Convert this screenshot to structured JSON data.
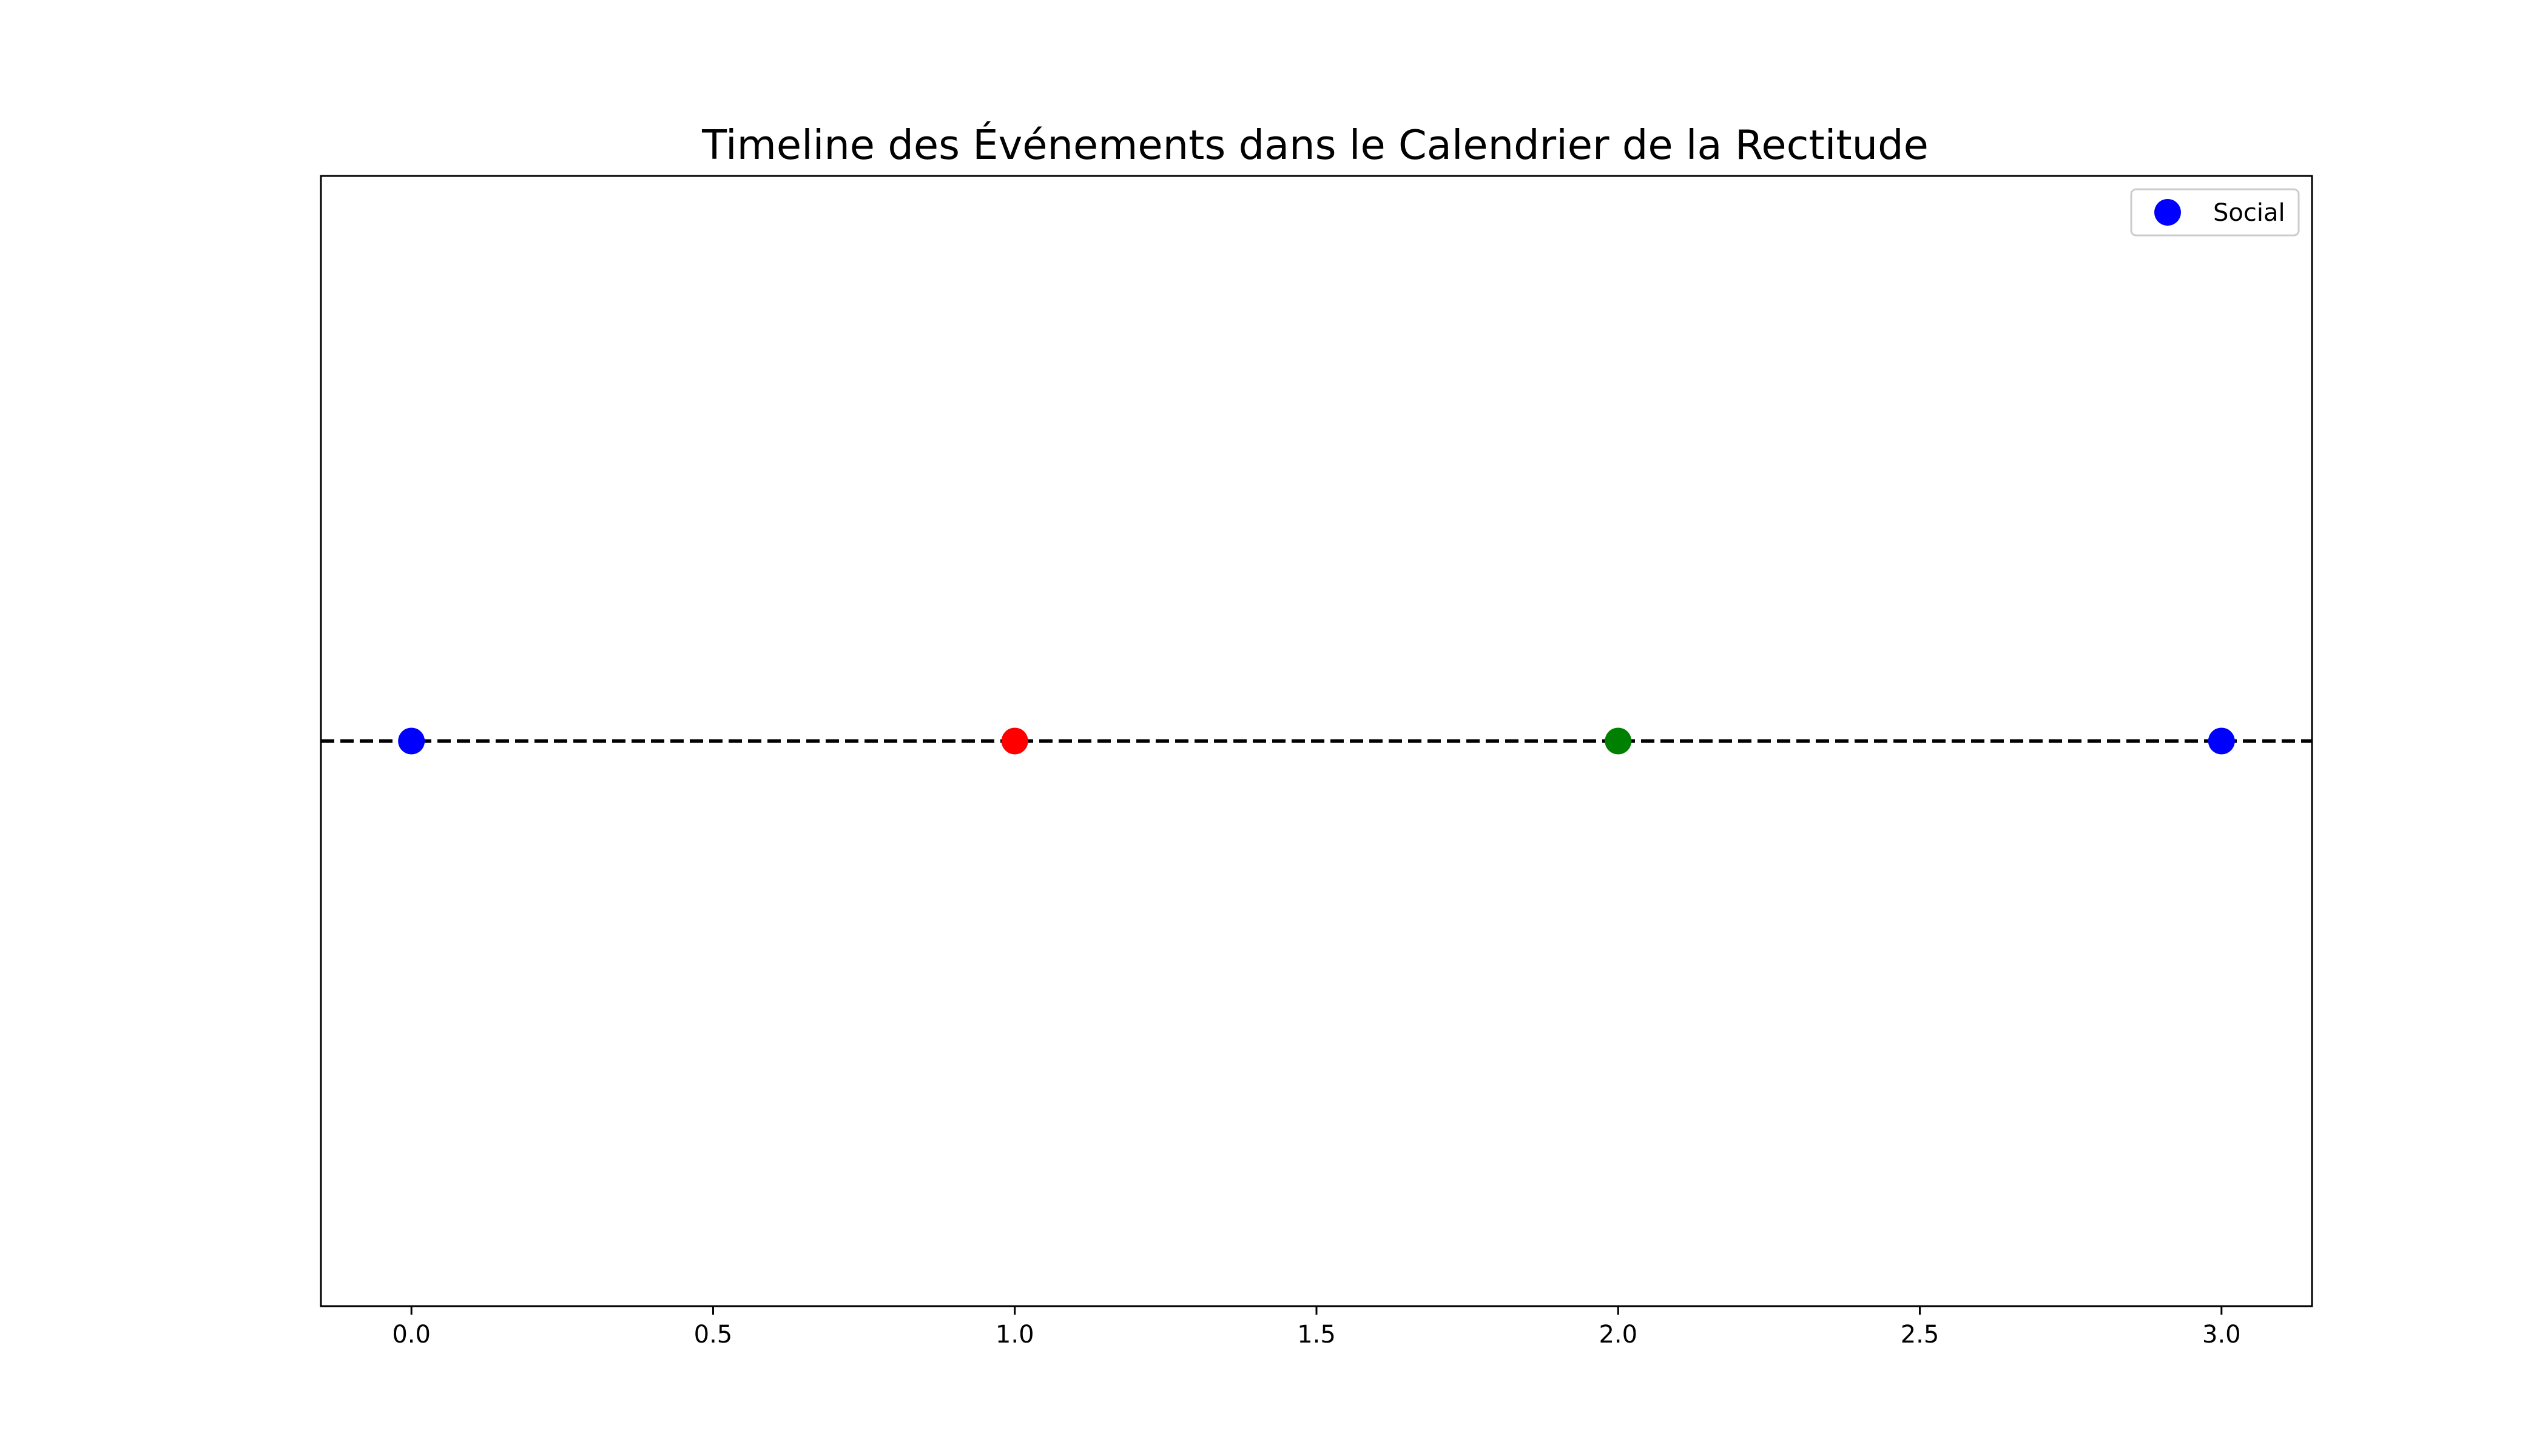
{
  "chart_data": {
    "type": "scatter",
    "title": "Timeline des Événements dans le Calendrier de la Rectitude",
    "xlabel": "",
    "ylabel": "",
    "xlim": [
      -0.15,
      3.15
    ],
    "ylim": [
      -1,
      1
    ],
    "x_ticks": [
      0.0,
      0.5,
      1.0,
      1.5,
      2.0,
      2.5,
      3.0
    ],
    "x_tick_labels": [
      "0.0",
      "0.5",
      "1.0",
      "1.5",
      "2.0",
      "2.5",
      "3.0"
    ],
    "y_ticks_visible": false,
    "grid": false,
    "reference_line": {
      "y": 0,
      "style": "dashed",
      "color": "#000000"
    },
    "points": [
      {
        "x": 0,
        "y": 0,
        "color": "#0000ff"
      },
      {
        "x": 1,
        "y": 0,
        "color": "#ff0000"
      },
      {
        "x": 2,
        "y": 0,
        "color": "#008000"
      },
      {
        "x": 3,
        "y": 0,
        "color": "#0000ff"
      }
    ],
    "legend": {
      "placement": "top-right",
      "entries": [
        {
          "label": "Social",
          "color": "#0000ff"
        }
      ]
    }
  }
}
